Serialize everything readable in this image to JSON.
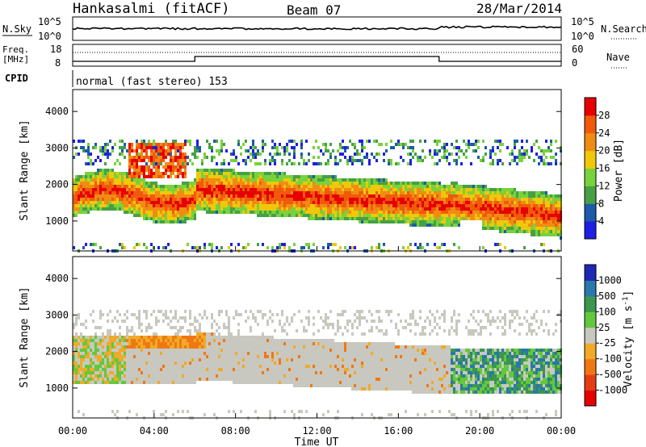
{
  "header": {
    "station": "Hankasalmi (fitACF)",
    "beam": "Beam 07",
    "date": "28/Mar/2014"
  },
  "top_panels": {
    "nsky_label": "N.Sky",
    "nsearch_label": "N.Search",
    "freq_label": [
      "Freq.",
      "[MHz]"
    ],
    "nave_label": "Nave",
    "cpid_label": "CPID",
    "cpid_text": "normal (fast stereo) 153",
    "nsky_ticks": [
      "10^5",
      "10^0"
    ],
    "nsearch_ticks": [
      "10^5",
      "10^0"
    ],
    "freq_ticks": [
      "18",
      "8"
    ],
    "nave_ticks": [
      "60",
      "0"
    ]
  },
  "chart_data": [
    {
      "type": "heatmap",
      "title": "",
      "xlabel": "Time UT",
      "ylabel": "Slant Range [km]",
      "x_ticks": [
        "00:00",
        "04:00",
        "08:00",
        "12:00",
        "16:00",
        "20:00",
        "00:00"
      ],
      "y_ticks": [
        1000,
        2000,
        3000,
        4000
      ],
      "ylim": [
        180,
        4600
      ],
      "xlim_hours": [
        0,
        24
      ],
      "colorbar": {
        "label": "Power [dB]",
        "ticks": [
          "4",
          "8",
          "12",
          "16",
          "20",
          "24",
          "28"
        ],
        "colors": [
          "#1e1ee6",
          "#1e5aaa",
          "#46a046",
          "#78d23c",
          "#f0c80a",
          "#f08c14",
          "#f05a0a",
          "#e60000"
        ]
      }
    },
    {
      "type": "heatmap",
      "title": "",
      "xlabel": "Time UT",
      "ylabel": "Slant Range [km]",
      "x_ticks": [
        "00:00",
        "04:00",
        "08:00",
        "12:00",
        "16:00",
        "20:00",
        "00:00"
      ],
      "y_ticks": [
        1000,
        2000,
        3000,
        4000
      ],
      "ylim": [
        180,
        4600
      ],
      "xlim_hours": [
        0,
        24
      ],
      "colorbar": {
        "label": "Velocity [m s^-1]",
        "ticks": [
          "1000",
          "500",
          "100",
          "25",
          "-25",
          "-100",
          "-500",
          "-1000"
        ],
        "colors": [
          "#1e28b4",
          "#2878aa",
          "#3c9650",
          "#64c83c",
          "#c8c8c0",
          "#f0aa28",
          "#f07814",
          "#e63c14",
          "#e60000"
        ]
      }
    }
  ]
}
